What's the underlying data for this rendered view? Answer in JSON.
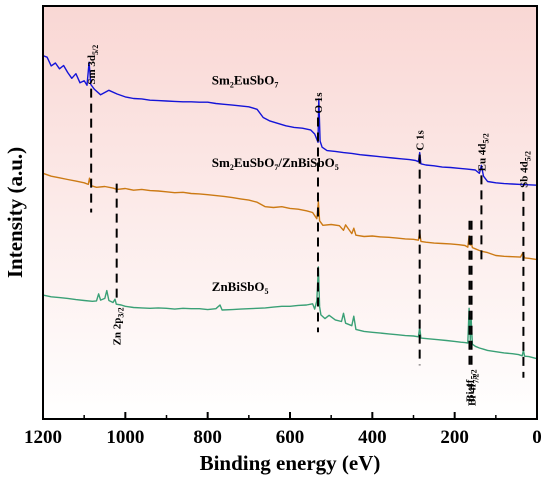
{
  "chart_data": {
    "type": "line",
    "title": "",
    "xlabel": "Binding energy (eV)",
    "ylabel": "Intensity (a.u.)",
    "xlim": [
      1200,
      0
    ],
    "x_reversed": true,
    "ylim": [
      0,
      100
    ],
    "y_ticks_shown": false,
    "x_ticks": [
      "1200",
      "1000",
      "800",
      "600",
      "400",
      "200",
      "0"
    ],
    "background_gradient": [
      "#f9d7d4",
      "#ffffff"
    ],
    "series": [
      {
        "name": "Sm2EuSbO7",
        "label_main": "Sm",
        "label_parts": [
          [
            "Sm",
            ""
          ],
          [
            "2",
            "sub"
          ],
          [
            "EuSbO",
            ""
          ],
          [
            "7",
            "sub"
          ]
        ],
        "color": "#1414d8",
        "points": [
          [
            1200,
            88
          ],
          [
            1190,
            87.6
          ],
          [
            1180,
            85.5
          ],
          [
            1170,
            86.2
          ],
          [
            1160,
            84.8
          ],
          [
            1150,
            85.6
          ],
          [
            1140,
            83.9
          ],
          [
            1130,
            82.5
          ],
          [
            1120,
            83.6
          ],
          [
            1110,
            81.4
          ],
          [
            1100,
            81.9
          ],
          [
            1093,
            80.8
          ],
          [
            1088,
            86.4
          ],
          [
            1084,
            81
          ],
          [
            1075,
            79.8
          ],
          [
            1060,
            78.5
          ],
          [
            1040,
            79.6
          ],
          [
            1020,
            78.7
          ],
          [
            1000,
            78
          ],
          [
            980,
            77.6
          ],
          [
            960,
            77.5
          ],
          [
            940,
            77.2
          ],
          [
            920,
            77.1
          ],
          [
            900,
            77
          ],
          [
            880,
            76.9
          ],
          [
            860,
            76.8
          ],
          [
            840,
            76.8
          ],
          [
            820,
            76.7
          ],
          [
            800,
            76.7
          ],
          [
            780,
            76.4
          ],
          [
            760,
            76.2
          ],
          [
            740,
            76
          ],
          [
            720,
            75.8
          ],
          [
            700,
            75.6
          ],
          [
            680,
            75
          ],
          [
            665,
            73
          ],
          [
            650,
            72.2
          ],
          [
            630,
            71.6
          ],
          [
            610,
            71
          ],
          [
            590,
            70.6
          ],
          [
            570,
            70.4
          ],
          [
            550,
            70
          ],
          [
            540,
            69
          ],
          [
            532,
            67
          ],
          [
            530,
            77.5
          ],
          [
            527,
            67.3
          ],
          [
            522,
            65.8
          ],
          [
            510,
            65
          ],
          [
            490,
            64.8
          ],
          [
            470,
            64.5
          ],
          [
            450,
            64.3
          ],
          [
            430,
            64
          ],
          [
            410,
            63.8
          ],
          [
            390,
            63.6
          ],
          [
            370,
            63.4
          ],
          [
            350,
            63.2
          ],
          [
            330,
            63
          ],
          [
            310,
            62.8
          ],
          [
            295,
            62.6
          ],
          [
            288,
            62.3
          ],
          [
            285,
            64.5
          ],
          [
            282,
            61.8
          ],
          [
            270,
            61.5
          ],
          [
            250,
            61.3
          ],
          [
            230,
            61
          ],
          [
            210,
            60.9
          ],
          [
            190,
            60.7
          ],
          [
            170,
            60.5
          ],
          [
            150,
            60.3
          ],
          [
            140,
            59.5
          ],
          [
            135,
            61.4
          ],
          [
            130,
            58.8
          ],
          [
            120,
            57.5
          ],
          [
            100,
            57.2
          ],
          [
            80,
            57
          ],
          [
            60,
            56.9
          ],
          [
            40,
            56.8
          ],
          [
            20,
            56.7
          ],
          [
            0,
            56.6
          ]
        ]
      },
      {
        "name": "Sm2EuSbO7/ZnBiSbO5",
        "label_parts": [
          [
            "Sm",
            ""
          ],
          [
            "2",
            "sub"
          ],
          [
            "EuSbO",
            ""
          ],
          [
            "7",
            "sub"
          ],
          [
            "/ZnBiSbO",
            ""
          ],
          [
            "5",
            "sub"
          ]
        ],
        "color": "#cc7a14",
        "points": [
          [
            1200,
            59.5
          ],
          [
            1180,
            58.8
          ],
          [
            1160,
            58.4
          ],
          [
            1140,
            58
          ],
          [
            1120,
            57.6
          ],
          [
            1100,
            57.2
          ],
          [
            1090,
            56.8
          ],
          [
            1087,
            58.3
          ],
          [
            1083,
            56.5
          ],
          [
            1070,
            56.1
          ],
          [
            1050,
            56.3
          ],
          [
            1030,
            55.9
          ],
          [
            1020,
            55.6
          ],
          [
            1000,
            55.8
          ],
          [
            980,
            55.4
          ],
          [
            960,
            55.6
          ],
          [
            940,
            55.3
          ],
          [
            920,
            55.2
          ],
          [
            900,
            55
          ],
          [
            880,
            54.8
          ],
          [
            860,
            54.9
          ],
          [
            840,
            54.6
          ],
          [
            820,
            54.5
          ],
          [
            800,
            54.3
          ],
          [
            780,
            54.1
          ],
          [
            760,
            53.9
          ],
          [
            740,
            53.6
          ],
          [
            720,
            53.3
          ],
          [
            700,
            53
          ],
          [
            680,
            52.5
          ],
          [
            660,
            51.4
          ],
          [
            640,
            51.2
          ],
          [
            620,
            51.4
          ],
          [
            600,
            51
          ],
          [
            580,
            50.8
          ],
          [
            560,
            50.4
          ],
          [
            545,
            50
          ],
          [
            535,
            48.5
          ],
          [
            531,
            52.6
          ],
          [
            528,
            48
          ],
          [
            520,
            46.9
          ],
          [
            500,
            47.1
          ],
          [
            480,
            46.8
          ],
          [
            470,
            45.7
          ],
          [
            465,
            47
          ],
          [
            450,
            44.9
          ],
          [
            445,
            46.2
          ],
          [
            440,
            44.5
          ],
          [
            420,
            44.2
          ],
          [
            400,
            44.3
          ],
          [
            380,
            44.1
          ],
          [
            360,
            44
          ],
          [
            340,
            43.8
          ],
          [
            320,
            43.6
          ],
          [
            300,
            43.5
          ],
          [
            288,
            43.3
          ],
          [
            285,
            45.2
          ],
          [
            282,
            43
          ],
          [
            270,
            42.8
          ],
          [
            250,
            42.6
          ],
          [
            230,
            42.5
          ],
          [
            210,
            42.4
          ],
          [
            190,
            42.2
          ],
          [
            175,
            42
          ],
          [
            168,
            41.6
          ],
          [
            165,
            44.3
          ],
          [
            162,
            42.1
          ],
          [
            160,
            42.9
          ],
          [
            157,
            41.5
          ],
          [
            150,
            41.2
          ],
          [
            140,
            40.8
          ],
          [
            130,
            40.5
          ],
          [
            120,
            40.3
          ],
          [
            100,
            39.6
          ],
          [
            80,
            39.4
          ],
          [
            60,
            39.3
          ],
          [
            40,
            39.2
          ],
          [
            34,
            40.3
          ],
          [
            30,
            39
          ],
          [
            20,
            38.9
          ],
          [
            0,
            38.6
          ]
        ]
      },
      {
        "name": "ZnBiSbO5",
        "label_parts": [
          [
            "ZnBiSbO",
            ""
          ],
          [
            "5",
            "sub"
          ]
        ],
        "color": "#3aa076",
        "points": [
          [
            1200,
            30
          ],
          [
            1180,
            29.6
          ],
          [
            1160,
            29.4
          ],
          [
            1140,
            29.2
          ],
          [
            1120,
            28.9
          ],
          [
            1100,
            28.7
          ],
          [
            1080,
            28.5
          ],
          [
            1070,
            28.6
          ],
          [
            1065,
            30.3
          ],
          [
            1060,
            28.8
          ],
          [
            1050,
            29.2
          ],
          [
            1045,
            31.1
          ],
          [
            1040,
            28.7
          ],
          [
            1030,
            28.2
          ],
          [
            1025,
            29
          ],
          [
            1022,
            27.8
          ],
          [
            1010,
            27.6
          ],
          [
            1000,
            27.3
          ],
          [
            980,
            27
          ],
          [
            960,
            26.9
          ],
          [
            940,
            26.8
          ],
          [
            920,
            26.9
          ],
          [
            900,
            26.8
          ],
          [
            880,
            26.6
          ],
          [
            860,
            26.8
          ],
          [
            840,
            26.7
          ],
          [
            820,
            26.7
          ],
          [
            800,
            26.5
          ],
          [
            780,
            26.7
          ],
          [
            770,
            27.6
          ],
          [
            765,
            26.4
          ],
          [
            740,
            26.5
          ],
          [
            720,
            26.6
          ],
          [
            700,
            26.7
          ],
          [
            680,
            26.8
          ],
          [
            660,
            26.9
          ],
          [
            640,
            27.1
          ],
          [
            620,
            27.3
          ],
          [
            600,
            27.3
          ],
          [
            580,
            27.5
          ],
          [
            560,
            27.6
          ],
          [
            545,
            27.9
          ],
          [
            540,
            26.6
          ],
          [
            535,
            28.6
          ],
          [
            531,
            36.8
          ],
          [
            528,
            27.2
          ],
          [
            525,
            25.2
          ],
          [
            515,
            24.3
          ],
          [
            505,
            25.1
          ],
          [
            490,
            24
          ],
          [
            475,
            23.6
          ],
          [
            470,
            25.6
          ],
          [
            465,
            23.2
          ],
          [
            450,
            22.6
          ],
          [
            445,
            24.9
          ],
          [
            440,
            21.7
          ],
          [
            420,
            21.2
          ],
          [
            400,
            21
          ],
          [
            380,
            20.8
          ],
          [
            360,
            20.6
          ],
          [
            340,
            20.4
          ],
          [
            320,
            20.2
          ],
          [
            300,
            20.1
          ],
          [
            288,
            19.9
          ],
          [
            285,
            22.2
          ],
          [
            282,
            19.6
          ],
          [
            260,
            19.4
          ],
          [
            240,
            19.2
          ],
          [
            220,
            19
          ],
          [
            200,
            18.8
          ],
          [
            185,
            18.6
          ],
          [
            175,
            18.5
          ],
          [
            168,
            18.4
          ],
          [
            165,
            26.8
          ],
          [
            162,
            19.1
          ],
          [
            160,
            24.6
          ],
          [
            157,
            18.1
          ],
          [
            150,
            17.6
          ],
          [
            140,
            17.2
          ],
          [
            130,
            16.9
          ],
          [
            120,
            16.6
          ],
          [
            100,
            16.3
          ],
          [
            80,
            16
          ],
          [
            60,
            15.8
          ],
          [
            45,
            15.6
          ],
          [
            36,
            15.3
          ],
          [
            33,
            16.6
          ],
          [
            30,
            15.2
          ],
          [
            20,
            15.1
          ],
          [
            0,
            14.6
          ]
        ]
      }
    ],
    "peak_markers": [
      {
        "label": "Sm 3d",
        "sub": "5/2",
        "x": 1083,
        "y_top": 80,
        "y_bottom": 50,
        "label_pos": "top"
      },
      {
        "label": "O 1s",
        "sub": "",
        "x": 532,
        "y_top": 73,
        "y_bottom": 21,
        "label_pos": "top"
      },
      {
        "label": "C 1s",
        "sub": "",
        "x": 285,
        "y_top": 64,
        "y_bottom": 13,
        "label_pos": "top"
      },
      {
        "label": "Eu 4d",
        "sub": "5/2",
        "x": 135,
        "y_top": 59,
        "y_bottom": 38,
        "label_pos": "top"
      },
      {
        "label": "Sb 4d",
        "sub": "5/2",
        "x": 33,
        "y_top": 55,
        "y_bottom": 10,
        "label_pos": "top"
      },
      {
        "label": "Zn 2p",
        "sub": "3/2",
        "x": 1021,
        "y_top": 57,
        "y_bottom": 28,
        "label_pos": "bottom"
      },
      {
        "label": "Bi 4f",
        "sub": "5/2",
        "x": 164,
        "y_top": 48,
        "y_bottom": 13,
        "label_pos": "bottom"
      },
      {
        "label": "Bi 4f",
        "sub": "7/2",
        "x": 159,
        "y_top": 48,
        "y_bottom": 12,
        "label_pos": "bottom"
      }
    ],
    "series_label_positions": [
      {
        "series": 0,
        "x": 790,
        "y": 81
      },
      {
        "series": 1,
        "x": 790,
        "y": 61
      },
      {
        "series": 2,
        "x": 790,
        "y": 31
      }
    ]
  }
}
